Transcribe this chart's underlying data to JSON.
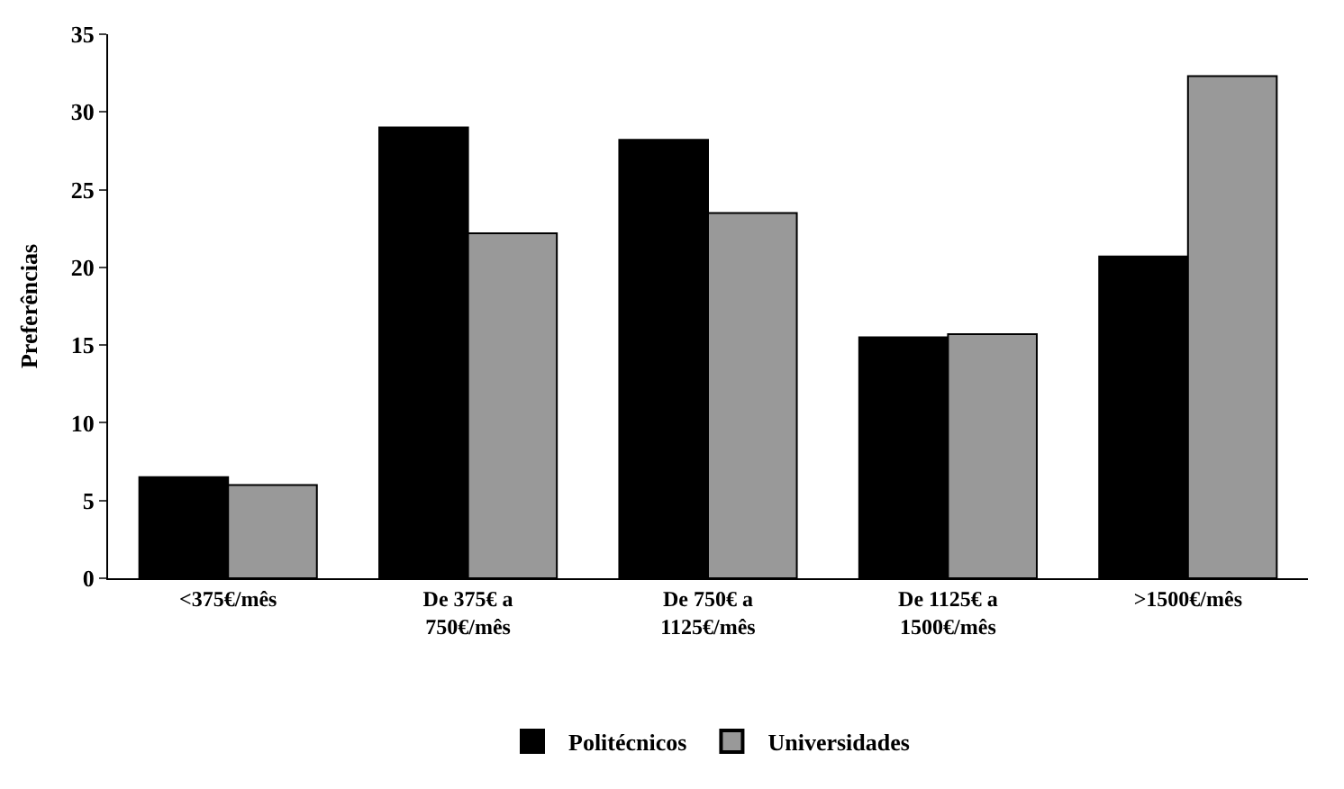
{
  "chart_data": {
    "type": "bar",
    "ylabel": "Preferências",
    "categories": [
      "<375€/mês",
      "De 375€ a\n750€/mês",
      "De 750€ a\n1125€/mês",
      "De 1125€ a\n1500€/mês",
      ">1500€/mês"
    ],
    "series": [
      {
        "name": "Politécnicos",
        "color": "#000000",
        "values": [
          6.5,
          29.0,
          28.2,
          15.5,
          20.7
        ]
      },
      {
        "name": "Universidades",
        "color": "#999999",
        "values": [
          6.0,
          22.2,
          23.5,
          15.7,
          32.3
        ]
      }
    ],
    "ylim": [
      0,
      35
    ],
    "yticks": [
      0,
      5,
      10,
      15,
      20,
      25,
      30,
      35
    ],
    "legend": "bottom"
  }
}
